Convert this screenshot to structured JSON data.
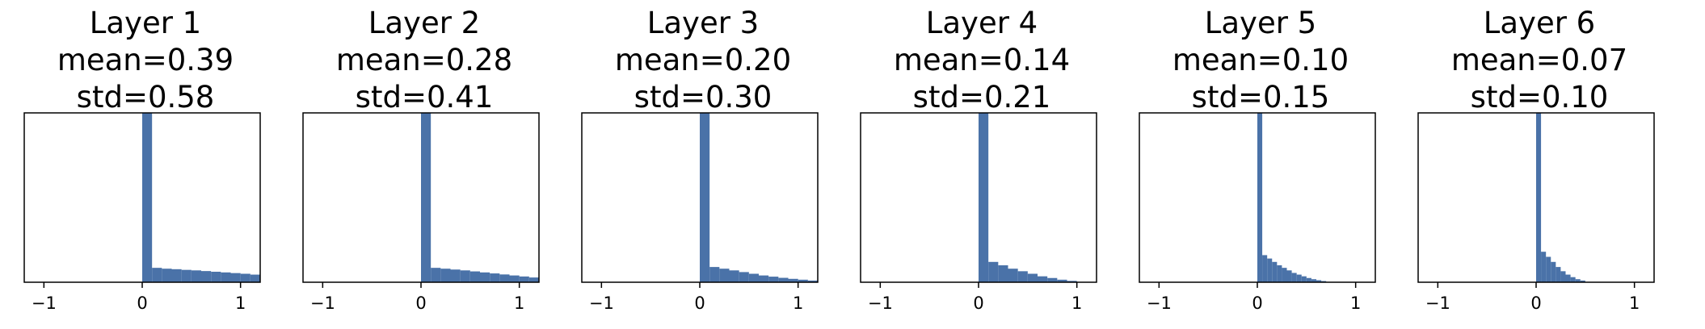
{
  "chart_data": [
    {
      "type": "bar",
      "title": "Layer 1",
      "mean_text": "mean=0.39",
      "std_text": "std=0.58",
      "xlim": [
        -1.2,
        1.2
      ],
      "xticks": [
        -1,
        0,
        1
      ],
      "xtick_labels": [
        "−1",
        "0",
        "1"
      ],
      "bin_width": 0.1,
      "bins_start": [
        0.0,
        0.1,
        0.2,
        0.3,
        0.4,
        0.5,
        0.6,
        0.7,
        0.8,
        0.9,
        1.0,
        1.1
      ],
      "values": [
        1.0,
        0.085,
        0.08,
        0.077,
        0.073,
        0.07,
        0.066,
        0.062,
        0.058,
        0.054,
        0.05,
        0.045
      ]
    },
    {
      "type": "bar",
      "title": "Layer 2",
      "mean_text": "mean=0.28",
      "std_text": "std=0.41",
      "xlim": [
        -1.2,
        1.2
      ],
      "xticks": [
        -1,
        0,
        1
      ],
      "xtick_labels": [
        "−1",
        "0",
        "1"
      ],
      "bin_width": 0.1,
      "bins_start": [
        0.0,
        0.1,
        0.2,
        0.3,
        0.4,
        0.5,
        0.6,
        0.7,
        0.8,
        0.9,
        1.0,
        1.1
      ],
      "values": [
        1.0,
        0.085,
        0.08,
        0.075,
        0.07,
        0.064,
        0.058,
        0.052,
        0.046,
        0.04,
        0.034,
        0.028
      ]
    },
    {
      "type": "bar",
      "title": "Layer 3",
      "mean_text": "mean=0.20",
      "std_text": "std=0.30",
      "xlim": [
        -1.2,
        1.2
      ],
      "xticks": [
        -1,
        0,
        1
      ],
      "xtick_labels": [
        "−1",
        "0",
        "1"
      ],
      "bin_width": 0.1,
      "bins_start": [
        0.0,
        0.1,
        0.2,
        0.3,
        0.4,
        0.5,
        0.6,
        0.7,
        0.8,
        0.9,
        1.0,
        1.1
      ],
      "values": [
        1.0,
        0.09,
        0.08,
        0.07,
        0.06,
        0.05,
        0.04,
        0.033,
        0.026,
        0.02,
        0.015,
        0.01
      ]
    },
    {
      "type": "bar",
      "title": "Layer 4",
      "mean_text": "mean=0.14",
      "std_text": "std=0.21",
      "xlim": [
        -1.2,
        1.2
      ],
      "xticks": [
        -1,
        0,
        1
      ],
      "xtick_labels": [
        "−1",
        "0",
        "1"
      ],
      "bin_width": 0.1,
      "bins_start": [
        0.0,
        0.1,
        0.2,
        0.3,
        0.4,
        0.5,
        0.6,
        0.7,
        0.8,
        0.9
      ],
      "values": [
        1.0,
        0.12,
        0.1,
        0.08,
        0.065,
        0.05,
        0.035,
        0.025,
        0.015,
        0.008
      ]
    },
    {
      "type": "bar",
      "title": "Layer 5",
      "mean_text": "mean=0.10",
      "std_text": "std=0.15",
      "xlim": [
        -1.2,
        1.2
      ],
      "xticks": [
        -1,
        0,
        1
      ],
      "xtick_labels": [
        "−1",
        "0",
        "1"
      ],
      "bin_width": 0.05,
      "bins_start": [
        0.0,
        0.05,
        0.1,
        0.15,
        0.2,
        0.25,
        0.3,
        0.35,
        0.4,
        0.45,
        0.5,
        0.55,
        0.6,
        0.65
      ],
      "values": [
        1.0,
        0.16,
        0.14,
        0.12,
        0.1,
        0.085,
        0.07,
        0.055,
        0.045,
        0.035,
        0.025,
        0.018,
        0.012,
        0.007
      ]
    },
    {
      "type": "bar",
      "title": "Layer 6",
      "mean_text": "mean=0.07",
      "std_text": "std=0.10",
      "xlim": [
        -1.2,
        1.2
      ],
      "xticks": [
        -1,
        0,
        1
      ],
      "xtick_labels": [
        "−1",
        "0",
        "1"
      ],
      "bin_width": 0.05,
      "bins_start": [
        0.0,
        0.05,
        0.1,
        0.15,
        0.2,
        0.25,
        0.3,
        0.35,
        0.4,
        0.45
      ],
      "values": [
        1.0,
        0.18,
        0.15,
        0.12,
        0.09,
        0.065,
        0.045,
        0.03,
        0.018,
        0.01
      ]
    }
  ],
  "bar_color": "#4a72a8",
  "frame_color": "#000000"
}
